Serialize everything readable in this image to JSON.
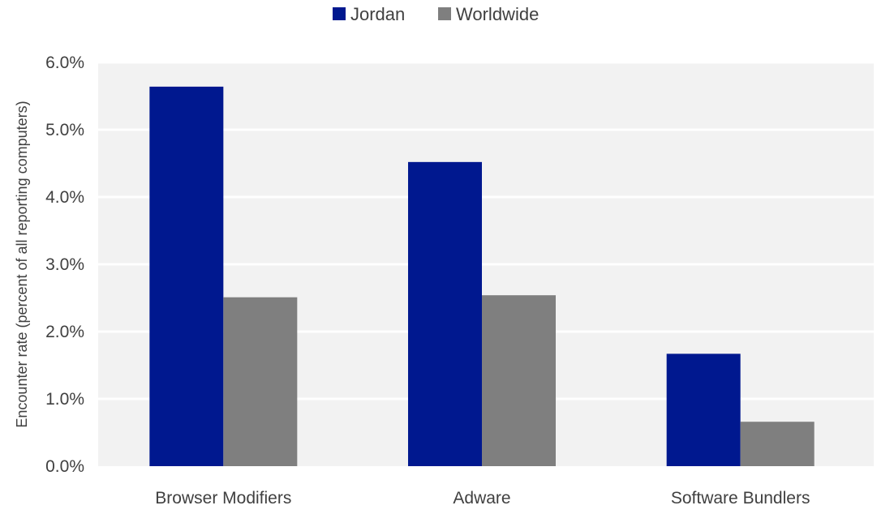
{
  "chart_data": {
    "type": "bar",
    "title": "",
    "xlabel": "",
    "ylabel": "Encounter rate (percent of all reporting computers)",
    "categories": [
      "Browser Modifiers",
      "Adware",
      "Software Bundlers"
    ],
    "series": [
      {
        "name": "Jordan",
        "color": "#00188F",
        "values": [
          5.64,
          4.52,
          1.67
        ]
      },
      {
        "name": "Worldwide",
        "color": "#7F7F7F",
        "values": [
          2.51,
          2.54,
          0.66
        ]
      }
    ],
    "ylim": [
      0,
      6
    ],
    "ytick_values": [
      0,
      1,
      2,
      3,
      4,
      5,
      6
    ],
    "ytick_labels": [
      "0.0%",
      "1.0%",
      "2.0%",
      "3.0%",
      "4.0%",
      "5.0%",
      "6.0%"
    ],
    "grid": true,
    "plot_background": "#F2F2F2",
    "gridline_color": "#FFFFFF",
    "legend_position": "top-center"
  }
}
